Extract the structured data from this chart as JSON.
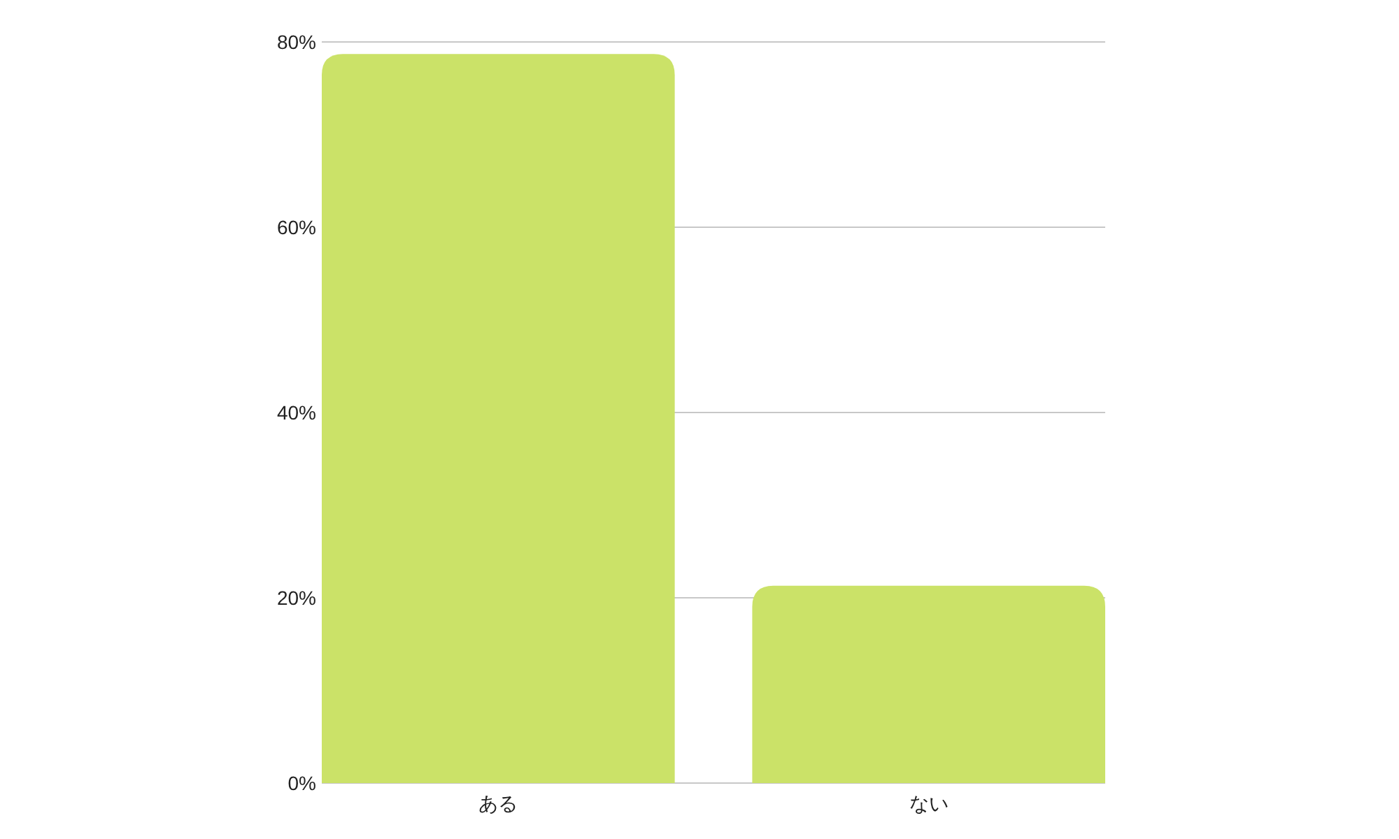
{
  "chart_data": {
    "type": "bar",
    "categories": [
      "ある",
      "ない"
    ],
    "values": [
      78.7,
      21.3
    ],
    "color": "#cbe268",
    "ylim": [
      0,
      80
    ],
    "yticks": [
      {
        "value": 0,
        "label": "0%"
      },
      {
        "value": 20,
        "label": "20%"
      },
      {
        "value": 40,
        "label": "40%"
      },
      {
        "value": 60,
        "label": "60%"
      },
      {
        "value": 80,
        "label": "80%"
      }
    ],
    "grid": "y"
  }
}
